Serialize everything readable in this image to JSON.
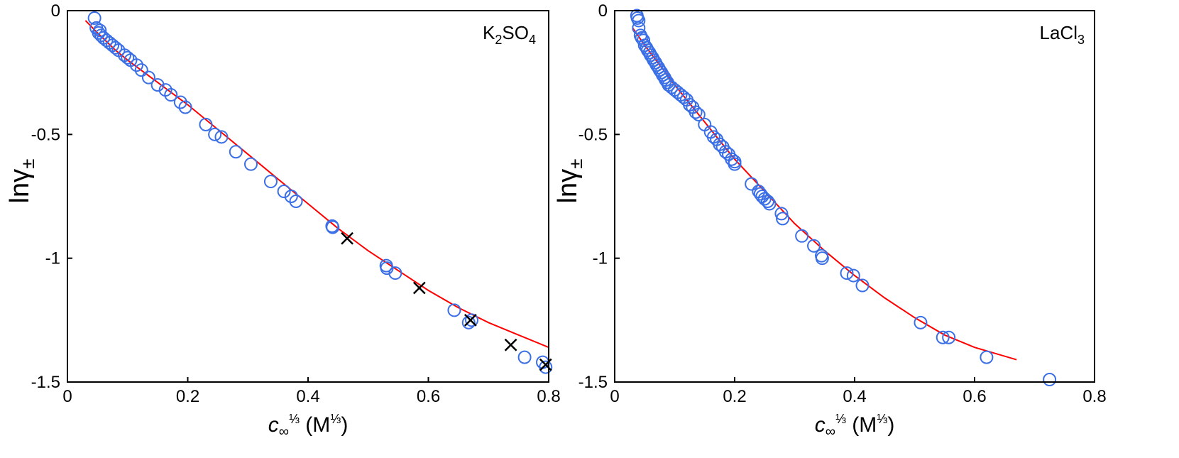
{
  "chart_data": [
    {
      "type": "scatter",
      "panel_label": {
        "main": "K",
        "sub1": "2",
        "mid": "SO",
        "sub2": "4"
      },
      "xlabel": {
        "var": "c",
        "sub": "∞",
        "sup": "⅓",
        "unit_open": " (M",
        "unit_sup": "⅓",
        "unit_close": ")"
      },
      "ylabel": {
        "main": "lnγ",
        "sub": "±"
      },
      "xlim": [
        0,
        0.8
      ],
      "ylim": [
        -1.5,
        0
      ],
      "xticks": [
        0,
        0.2,
        0.4,
        0.6,
        0.8
      ],
      "xtick_labels": [
        "0",
        "0.2",
        "0.4",
        "0.6",
        "0.8"
      ],
      "yticks": [
        0,
        -0.5,
        -1,
        -1.5
      ],
      "ytick_labels": [
        "0",
        "-0.5",
        "-1",
        "-1.5"
      ],
      "fit_line": {
        "color": "#ff0000",
        "x": [
          0.03,
          0.05,
          0.08,
          0.1,
          0.15,
          0.2,
          0.25,
          0.3,
          0.35,
          0.4,
          0.45,
          0.5,
          0.55,
          0.6,
          0.65,
          0.7,
          0.75,
          0.8
        ],
        "y": [
          -0.04,
          -0.09,
          -0.16,
          -0.2,
          -0.29,
          -0.38,
          -0.48,
          -0.58,
          -0.68,
          -0.78,
          -0.88,
          -0.97,
          -1.05,
          -1.13,
          -1.2,
          -1.26,
          -1.31,
          -1.36
        ]
      },
      "series": [
        {
          "name": "circles",
          "marker": "circle",
          "color": "#3b6fe6",
          "x": [
            0.045,
            0.048,
            0.052,
            0.054,
            0.056,
            0.06,
            0.065,
            0.07,
            0.075,
            0.08,
            0.085,
            0.095,
            0.1,
            0.105,
            0.115,
            0.123,
            0.135,
            0.15,
            0.163,
            0.172,
            0.188,
            0.196,
            0.23,
            0.245,
            0.256,
            0.28,
            0.305,
            0.338,
            0.36,
            0.372,
            0.38,
            0.44,
            0.441,
            0.53,
            0.531,
            0.545,
            0.643,
            0.667,
            0.672,
            0.76,
            0.79,
            0.795
          ],
          "y": [
            -0.03,
            -0.07,
            -0.09,
            -0.08,
            -0.1,
            -0.11,
            -0.12,
            -0.13,
            -0.14,
            -0.15,
            -0.16,
            -0.18,
            -0.19,
            -0.2,
            -0.22,
            -0.24,
            -0.27,
            -0.3,
            -0.32,
            -0.34,
            -0.37,
            -0.39,
            -0.46,
            -0.5,
            -0.51,
            -0.57,
            -0.62,
            -0.69,
            -0.73,
            -0.75,
            -0.77,
            -0.87,
            -0.875,
            -1.03,
            -1.04,
            -1.06,
            -1.21,
            -1.26,
            -1.25,
            -1.4,
            -1.42,
            -1.44
          ]
        },
        {
          "name": "crosses",
          "marker": "x",
          "color": "#000000",
          "x": [
            0.465,
            0.585,
            0.67,
            0.737,
            0.795
          ],
          "y": [
            -0.92,
            -1.12,
            -1.25,
            -1.35,
            -1.43
          ]
        }
      ]
    },
    {
      "type": "scatter",
      "panel_label": {
        "main": "LaCl",
        "sub1": "3",
        "mid": "",
        "sub2": ""
      },
      "xlabel": {
        "var": "c",
        "sub": "∞",
        "sup": "⅓",
        "unit_open": " (M",
        "unit_sup": "⅓",
        "unit_close": ")"
      },
      "ylabel": {
        "main": "lnγ",
        "sub": "±"
      },
      "xlim": [
        0,
        0.8
      ],
      "ylim": [
        -1.5,
        0
      ],
      "xticks": [
        0,
        0.2,
        0.4,
        0.6,
        0.8
      ],
      "xtick_labels": [
        "0",
        "0.2",
        "0.4",
        "0.6",
        "0.8"
      ],
      "yticks": [
        0,
        -0.5,
        -1,
        -1.5
      ],
      "ytick_labels": [
        "0",
        "-0.5",
        "-1",
        "-1.5"
      ],
      "fit_line": {
        "color": "#ff0000",
        "x": [
          0.03,
          0.05,
          0.075,
          0.1,
          0.15,
          0.2,
          0.25,
          0.3,
          0.35,
          0.4,
          0.45,
          0.5,
          0.55,
          0.6,
          0.67
        ],
        "y": [
          -0.07,
          -0.14,
          -0.22,
          -0.3,
          -0.45,
          -0.6,
          -0.73,
          -0.86,
          -0.97,
          -1.07,
          -1.16,
          -1.24,
          -1.31,
          -1.36,
          -1.41
        ]
      },
      "series": [
        {
          "name": "circles",
          "marker": "circle",
          "color": "#3b6fe6",
          "x": [
            0.037,
            0.038,
            0.04,
            0.04,
            0.043,
            0.045,
            0.048,
            0.05,
            0.053,
            0.055,
            0.058,
            0.06,
            0.063,
            0.065,
            0.068,
            0.07,
            0.073,
            0.075,
            0.078,
            0.08,
            0.083,
            0.085,
            0.088,
            0.09,
            0.095,
            0.1,
            0.105,
            0.11,
            0.115,
            0.12,
            0.125,
            0.13,
            0.135,
            0.14,
            0.15,
            0.16,
            0.165,
            0.17,
            0.175,
            0.18,
            0.185,
            0.19,
            0.195,
            0.2,
            0.2,
            0.228,
            0.24,
            0.243,
            0.246,
            0.25,
            0.255,
            0.258,
            0.278,
            0.28,
            0.312,
            0.332,
            0.345,
            0.346,
            0.387,
            0.398,
            0.413,
            0.51,
            0.547,
            0.557,
            0.62,
            0.725
          ],
          "y": [
            -0.02,
            -0.03,
            -0.04,
            -0.07,
            -0.1,
            -0.11,
            -0.12,
            -0.14,
            -0.15,
            -0.16,
            -0.17,
            -0.18,
            -0.19,
            -0.2,
            -0.21,
            -0.22,
            -0.23,
            -0.24,
            -0.25,
            -0.26,
            -0.27,
            -0.28,
            -0.29,
            -0.3,
            -0.31,
            -0.32,
            -0.33,
            -0.34,
            -0.35,
            -0.36,
            -0.38,
            -0.39,
            -0.41,
            -0.42,
            -0.46,
            -0.49,
            -0.51,
            -0.52,
            -0.54,
            -0.55,
            -0.57,
            -0.58,
            -0.6,
            -0.61,
            -0.62,
            -0.7,
            -0.73,
            -0.74,
            -0.75,
            -0.76,
            -0.77,
            -0.78,
            -0.82,
            -0.84,
            -0.91,
            -0.95,
            -0.99,
            -1.0,
            -1.06,
            -1.07,
            -1.11,
            -1.26,
            -1.32,
            -1.32,
            -1.4,
            -1.49
          ]
        }
      ]
    }
  ]
}
